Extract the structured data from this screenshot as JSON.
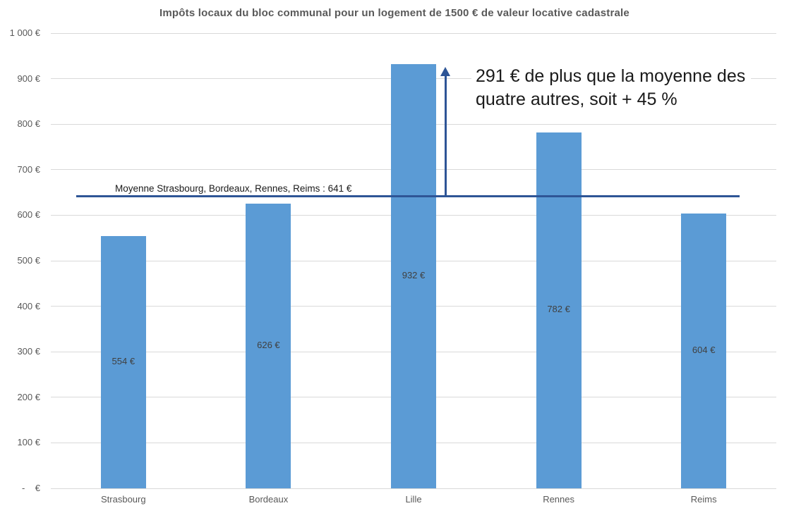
{
  "colors": {
    "bar": "#5B9BD5",
    "average_line": "#2E5596",
    "gridline": "#D9D9D9",
    "axis_text": "#595959",
    "bar_label_text": "#404040",
    "annotation_text": "#1a1a1a"
  },
  "chart_data": {
    "type": "bar",
    "title": "Impôts locaux du bloc communal pour un logement de 1500 € de valeur locative cadastrale",
    "categories": [
      "Strasbourg",
      "Bordeaux",
      "Lille",
      "Rennes",
      "Reims"
    ],
    "values": [
      554,
      626,
      932,
      782,
      604
    ],
    "bar_labels": [
      "554 €",
      "626 €",
      "932 €",
      "782 €",
      "604 €"
    ],
    "xlabel": "",
    "ylabel": "",
    "ylim": [
      0,
      1000
    ],
    "grid": true,
    "legend": "none",
    "yticks": [
      {
        "value": 0,
        "label": "-    €"
      },
      {
        "value": 100,
        "label": "100 €"
      },
      {
        "value": 200,
        "label": "200 €"
      },
      {
        "value": 300,
        "label": "300 €"
      },
      {
        "value": 400,
        "label": "400 €"
      },
      {
        "value": 500,
        "label": "500 €"
      },
      {
        "value": 600,
        "label": "600 €"
      },
      {
        "value": 700,
        "label": "700 €"
      },
      {
        "value": 800,
        "label": "800 €"
      },
      {
        "value": 900,
        "label": "900 €"
      },
      {
        "value": 1000,
        "label": "1 000 €"
      }
    ],
    "average_line": {
      "value": 641,
      "label": "Moyenne Strasbourg, Bordeaux, Rennes, Reims : 641 €"
    },
    "annotation": {
      "line1": "291 € de plus que la moyenne des",
      "line2": "quatre autres, soit + 45 %"
    }
  }
}
